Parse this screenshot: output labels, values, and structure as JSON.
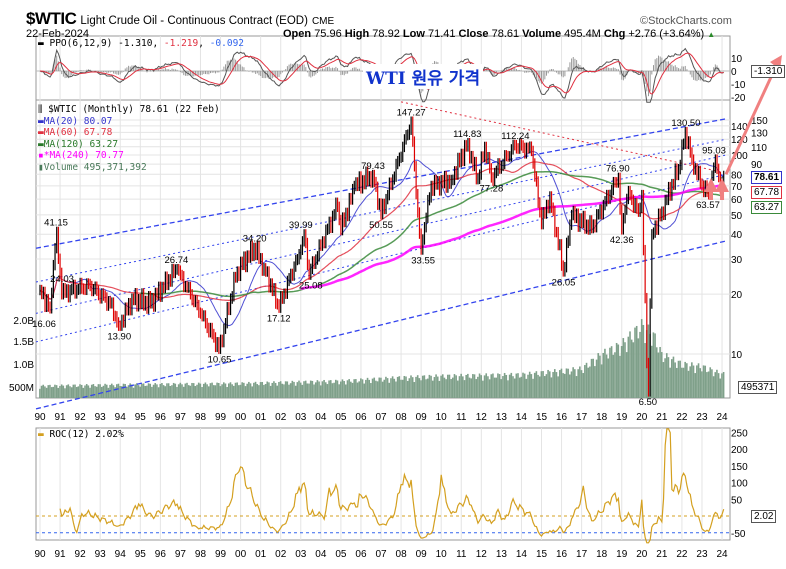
{
  "header": {
    "symbol": "$WTIC",
    "name": "Light Crude Oil - Continuous Contract (EOD)",
    "exchange": "CME",
    "brand": "©StockCharts.com",
    "date": "22-Feb-2024",
    "open_label": "Open",
    "open": "75.96",
    "high_label": "High",
    "high": "78.92",
    "low_label": "Low",
    "low": "71.41",
    "close_label": "Close",
    "close": "78.61",
    "volume_label": "Volume",
    "volume": "495.4M",
    "chg_label": "Chg",
    "chg": "+2.76 (+3.64%)"
  },
  "annotation_title": "WTI 원유 가격",
  "ppo": {
    "label": "PPO(6,12,9)",
    "v1": "-1.310",
    "v2": "-1.219",
    "v3": "-0.092",
    "ticks": [
      "10",
      "0",
      "-10",
      "-20"
    ],
    "tag": "-1.310"
  },
  "main_legend": {
    "title": "$WTIC (Monthly) 78.61 (22 Feb)",
    "ma20": "MA(20) 80.07",
    "ma60": "MA(60) 67.78",
    "ma120": "MA(120) 63.27",
    "ma240": "*MA(240) 70.77",
    "volume": "Volume 495,371,392"
  },
  "price_tags": {
    "close": "78.61",
    "ma60": "67.78",
    "ma120": "63.27",
    "volume": "495371"
  },
  "roc": {
    "label": "ROC(12) 2.02%",
    "ticks": [
      "250",
      "200",
      "150",
      "100",
      "50",
      "-50"
    ],
    "tag": "2.02"
  },
  "colors": {
    "ma20": "#3333cc",
    "ma60": "#e03040",
    "ma120": "#3a8a3a",
    "ma240": "#ff00ff",
    "volume": "#7fa08a",
    "roc": "#d4a020",
    "channel": "#3344ee",
    "arrow": "#f08080"
  },
  "chart_data": {
    "type": "line",
    "title": "$WTIC Light Crude Oil - Continuous Contract (EOD) Monthly",
    "scale": "log",
    "ylim": [
      5,
      160
    ],
    "y_ticks": [
      "150",
      "140",
      "130",
      "120",
      "110",
      "100",
      "90",
      "80",
      "70",
      "60",
      "50",
      "40",
      "30",
      "20",
      "10"
    ],
    "x_ticks": [
      "90",
      "91",
      "92",
      "93",
      "94",
      "95",
      "96",
      "97",
      "98",
      "99",
      "00",
      "01",
      "02",
      "03",
      "04",
      "05",
      "06",
      "07",
      "08",
      "09",
      "10",
      "11",
      "12",
      "13",
      "14",
      "15",
      "16",
      "17",
      "18",
      "19",
      "20",
      "21",
      "22",
      "23",
      "24"
    ],
    "volume_ticks": [
      "2.0B",
      "1.5B",
      "1.0B",
      "500M"
    ],
    "price_keypoints": [
      [
        1990.0,
        21
      ],
      [
        1990.5,
        17
      ],
      [
        1990.8,
        41.15
      ],
      [
        1991.1,
        20
      ],
      [
        1991.5,
        21
      ],
      [
        1992.5,
        22
      ],
      [
        1993.5,
        18
      ],
      [
        1993.95,
        13.9
      ],
      [
        1994.6,
        19
      ],
      [
        1995.5,
        18
      ],
      [
        1996.8,
        26.74
      ],
      [
        1997.5,
        20
      ],
      [
        1998.0,
        16
      ],
      [
        1998.95,
        10.65
      ],
      [
        1999.8,
        26
      ],
      [
        2000.7,
        34.2
      ],
      [
        2001.2,
        27
      ],
      [
        2001.9,
        17.12
      ],
      [
        2002.8,
        30
      ],
      [
        2003.2,
        39.99
      ],
      [
        2003.4,
        25.08
      ],
      [
        2004.8,
        55
      ],
      [
        2005.0,
        42
      ],
      [
        2005.7,
        70
      ],
      [
        2006.6,
        79.43
      ],
      [
        2007.0,
        50.55
      ],
      [
        2008.5,
        147.27
      ],
      [
        2008.97,
        33.55
      ],
      [
        2009.5,
        70
      ],
      [
        2010.5,
        75
      ],
      [
        2011.3,
        114.83
      ],
      [
        2011.8,
        76
      ],
      [
        2012.2,
        110
      ],
      [
        2012.5,
        77.28
      ],
      [
        2013.7,
        112.24
      ],
      [
        2014.5,
        105
      ],
      [
        2015.0,
        45
      ],
      [
        2015.4,
        62
      ],
      [
        2016.1,
        26.05
      ],
      [
        2016.5,
        50
      ],
      [
        2017.5,
        43
      ],
      [
        2018.8,
        76.9
      ],
      [
        2018.98,
        42.36
      ],
      [
        2019.3,
        66
      ],
      [
        2019.8,
        52
      ],
      [
        2020.0,
        63
      ],
      [
        2020.3,
        6.5
      ],
      [
        2020.5,
        40
      ],
      [
        2021.0,
        52
      ],
      [
        2021.8,
        85
      ],
      [
        2022.2,
        130.5
      ],
      [
        2022.5,
        95
      ],
      [
        2022.95,
        72
      ],
      [
        2023.3,
        63.57
      ],
      [
        2023.7,
        95.03
      ],
      [
        2023.95,
        68
      ],
      [
        2024.15,
        78.61
      ]
    ],
    "labels": [
      {
        "x": 1990.8,
        "y": 41.15,
        "t": "41.15",
        "pos": "above"
      },
      {
        "x": 1990.4,
        "y": 24.03,
        "t": "24.03",
        "pos": "right"
      },
      {
        "x": 1990.2,
        "y": 16.06,
        "t": "16.06",
        "pos": "below"
      },
      {
        "x": 1993.95,
        "y": 13.9,
        "t": "13.90",
        "pos": "below"
      },
      {
        "x": 1996.8,
        "y": 26.74,
        "t": "26.74",
        "pos": "above"
      },
      {
        "x": 1998.95,
        "y": 10.65,
        "t": "10.65",
        "pos": "below"
      },
      {
        "x": 2000.7,
        "y": 34.2,
        "t": "34.20",
        "pos": "above"
      },
      {
        "x": 2001.9,
        "y": 17.12,
        "t": "17.12",
        "pos": "below"
      },
      {
        "x": 2003.0,
        "y": 39.99,
        "t": "39.99",
        "pos": "above"
      },
      {
        "x": 2003.5,
        "y": 25.08,
        "t": "25.08",
        "pos": "below"
      },
      {
        "x": 2006.6,
        "y": 79.43,
        "t": "79.43",
        "pos": "above"
      },
      {
        "x": 2007.0,
        "y": 50.55,
        "t": "50.55",
        "pos": "below"
      },
      {
        "x": 2008.5,
        "y": 147.27,
        "t": "147.27",
        "pos": "above"
      },
      {
        "x": 2009.1,
        "y": 33.55,
        "t": "33.55",
        "pos": "below"
      },
      {
        "x": 2011.3,
        "y": 114.83,
        "t": "114.83",
        "pos": "above"
      },
      {
        "x": 2012.5,
        "y": 77.28,
        "t": "77.28",
        "pos": "below"
      },
      {
        "x": 2013.7,
        "y": 112.24,
        "t": "112.24",
        "pos": "above"
      },
      {
        "x": 2016.1,
        "y": 26.05,
        "t": "26.05",
        "pos": "below"
      },
      {
        "x": 2018.8,
        "y": 76.9,
        "t": "76.90",
        "pos": "above"
      },
      {
        "x": 2019.0,
        "y": 42.36,
        "t": "42.36",
        "pos": "below"
      },
      {
        "x": 2020.3,
        "y": 6.5,
        "t": "6.50",
        "pos": "below"
      },
      {
        "x": 2022.2,
        "y": 130.5,
        "t": "130.50",
        "pos": "above"
      },
      {
        "x": 2023.6,
        "y": 95.03,
        "t": "95.03",
        "pos": "above"
      },
      {
        "x": 2023.3,
        "y": 63.57,
        "t": "63.57",
        "pos": "below"
      }
    ],
    "volume_by_year_millions": [
      [
        1990,
        250
      ],
      [
        1995,
        280
      ],
      [
        2000,
        300
      ],
      [
        2005,
        350
      ],
      [
        2008,
        420
      ],
      [
        2010,
        450
      ],
      [
        2014,
        480
      ],
      [
        2017,
        600
      ],
      [
        2018,
        900
      ],
      [
        2019,
        1100
      ],
      [
        2020,
        1500
      ],
      [
        2020.6,
        1300
      ],
      [
        2021,
        900
      ],
      [
        2022,
        700
      ],
      [
        2023,
        650
      ],
      [
        2024,
        495
      ]
    ]
  }
}
